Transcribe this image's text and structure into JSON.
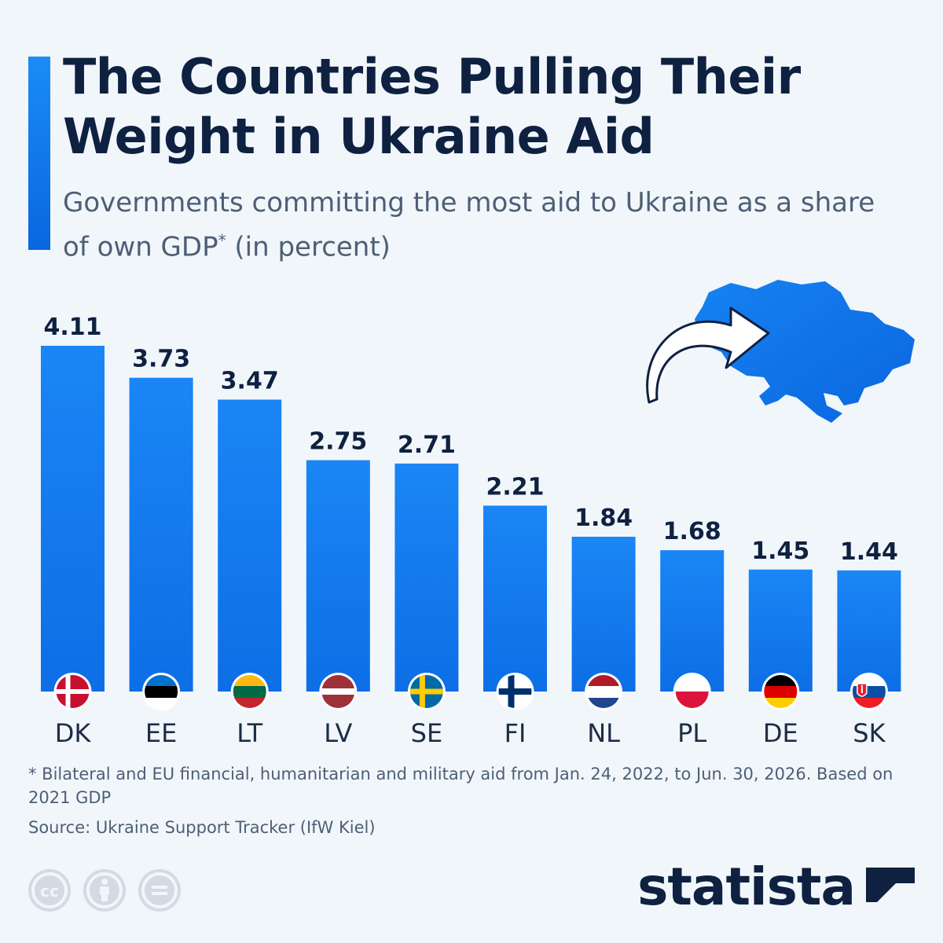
{
  "header": {
    "title": "The Countries Pulling Their Weight in Ukraine Aid",
    "subtitle_main": "Governments committing the most aid to Ukraine as a share of own GDP",
    "subtitle_mark": "*",
    "subtitle_unit": "(in percent)"
  },
  "chart_data": {
    "type": "bar",
    "title": "The Countries Pulling Their Weight in Ukraine Aid",
    "subtitle": "Governments committing the most aid to Ukraine as a share of own GDP* (in percent)",
    "categories": [
      "DK",
      "EE",
      "LT",
      "LV",
      "SE",
      "FI",
      "NL",
      "PL",
      "DE",
      "SK"
    ],
    "values": [
      4.11,
      3.73,
      3.47,
      2.75,
      2.71,
      2.21,
      1.84,
      1.68,
      1.45,
      1.44
    ],
    "value_labels": [
      "4.11",
      "3.73",
      "3.47",
      "2.75",
      "2.71",
      "2.21",
      "1.84",
      "1.68",
      "1.45",
      "1.44"
    ],
    "ylim": [
      0,
      4.11
    ],
    "grid": false,
    "legend": "none",
    "bar_color": "#1279f0",
    "flag_icons": [
      "denmark-flag-icon",
      "estonia-flag-icon",
      "lithuania-flag-icon",
      "latvia-flag-icon",
      "sweden-flag-icon",
      "finland-flag-icon",
      "netherlands-flag-icon",
      "poland-flag-icon",
      "germany-flag-icon",
      "slovakia-flag-icon"
    ]
  },
  "decoration": {
    "map_icon": "ukraine-map-icon",
    "arrow_icon": "curved-arrow-icon",
    "map_color": "#0a6fe8"
  },
  "footer": {
    "footnote": "* Bilateral and EU financial, humanitarian and military aid from Jan. 24, 2022, to Jun. 30, 2026. Based on 2021 GDP",
    "source": "Source: Ukraine Support Tracker (IfW Kiel)",
    "license_icons": [
      "cc-icon",
      "attribution-icon",
      "no-derivatives-icon"
    ],
    "brand": "statista"
  },
  "colors": {
    "title": "#0f2140",
    "text": "#4d5f75",
    "accent": "#1279f0",
    "background": "#f1f6fb"
  }
}
